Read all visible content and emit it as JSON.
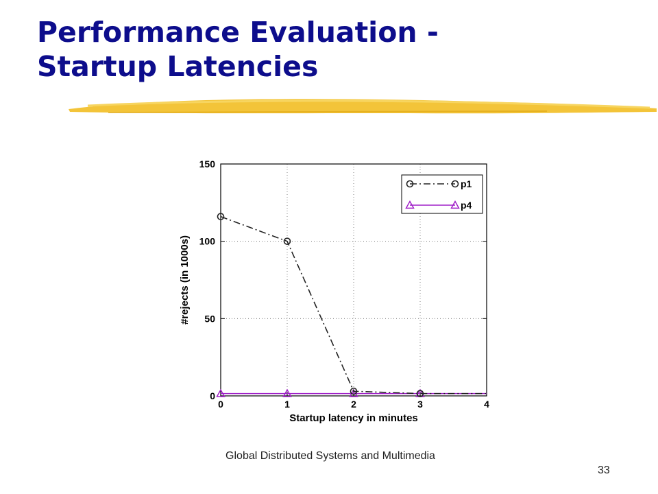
{
  "slide": {
    "title_line1": "Performance Evaluation -",
    "title_line2": "Startup Latencies",
    "footer_text": "Global Distributed Systems and Multimedia",
    "page_number": "33",
    "title_color": "#0d0d8c",
    "accent_color": "#f2c12e"
  },
  "chart_data": {
    "type": "line",
    "title": "",
    "xlabel": "Startup latency in minutes",
    "ylabel": "#rejects (in 1000s)",
    "xlim": [
      0,
      4
    ],
    "ylim": [
      0,
      150
    ],
    "xticks": [
      0,
      1,
      2,
      3,
      4
    ],
    "yticks": [
      0,
      50,
      100,
      150
    ],
    "grid": true,
    "legend_position": "top-right",
    "series": [
      {
        "name": "p1",
        "x": [
          0,
          1,
          2,
          3,
          4
        ],
        "y": [
          116,
          100,
          3,
          1.5,
          1.5
        ],
        "marker": "circle",
        "line_style": "dash-dot",
        "color": "#222222",
        "markers_at": [
          0,
          1,
          2,
          3
        ]
      },
      {
        "name": "p4",
        "x": [
          0,
          1,
          2,
          3,
          4
        ],
        "y": [
          1.5,
          1.5,
          1.5,
          1.5,
          1.5
        ],
        "marker": "triangle",
        "line_style": "solid",
        "color": "#a020c8",
        "markers_at": [
          0,
          1,
          2,
          3
        ]
      }
    ]
  }
}
